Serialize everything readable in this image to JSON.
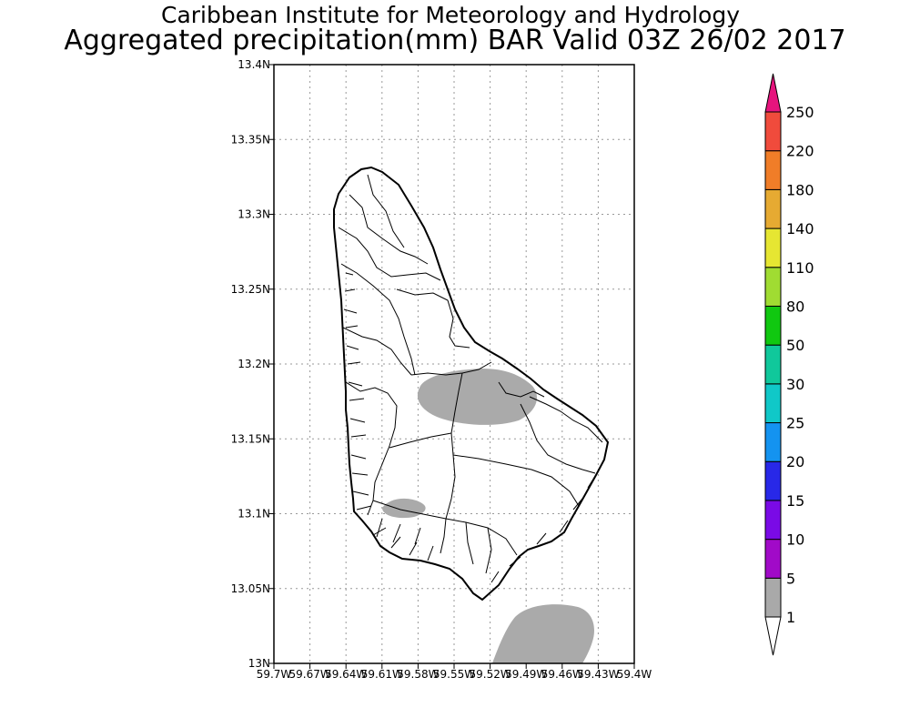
{
  "title": {
    "line1": "Caribbean Institute for Meteorology and Hydrology",
    "line2": "Aggregated precipitation(mm) BAR Valid 03Z 26/02 2017"
  },
  "map": {
    "lat_ticks": [
      "13N",
      "13.05N",
      "13.1N",
      "13.15N",
      "13.2N",
      "13.25N",
      "13.3N",
      "13.35N",
      "13.4N"
    ],
    "lon_ticks": [
      "59.7W",
      "59.67W",
      "59.64W",
      "59.61W",
      "59.58W",
      "59.55W",
      "59.52W",
      "59.49W",
      "59.46W",
      "59.43W",
      "59.4W"
    ],
    "grid": true,
    "grid_style": "dotted",
    "land_outline": "Barbados coastline and parish/watershed boundaries",
    "shaded_areas_class": "1-5 mm"
  },
  "colorbar": {
    "levels": [
      "1",
      "5",
      "10",
      "15",
      "20",
      "25",
      "30",
      "50",
      "80",
      "110",
      "140",
      "180",
      "220",
      "250"
    ],
    "colors": [
      "#ffffff",
      "#a9a9a9",
      "#a10ac8",
      "#7a0ae6",
      "#2828e8",
      "#1493f0",
      "#10c8c8",
      "#10c89b",
      "#10c810",
      "#a0dc32",
      "#e6e632",
      "#e6aa32",
      "#f07d28",
      "#f04b3c",
      "#e6147d"
    ],
    "orientation": "vertical",
    "placement": "right"
  }
}
